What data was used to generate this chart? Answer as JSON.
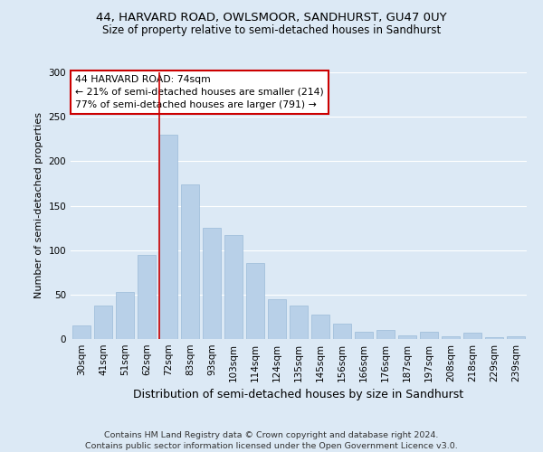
{
  "title_line1": "44, HARVARD ROAD, OWLSMOOR, SANDHURST, GU47 0UY",
  "title_line2": "Size of property relative to semi-detached houses in Sandhurst",
  "xlabel": "Distribution of semi-detached houses by size in Sandhurst",
  "ylabel": "Number of semi-detached properties",
  "footnote": "Contains HM Land Registry data © Crown copyright and database right 2024.\nContains public sector information licensed under the Open Government Licence v3.0.",
  "bar_labels": [
    "30sqm",
    "41sqm",
    "51sqm",
    "62sqm",
    "72sqm",
    "83sqm",
    "93sqm",
    "103sqm",
    "114sqm",
    "124sqm",
    "135sqm",
    "145sqm",
    "156sqm",
    "166sqm",
    "176sqm",
    "187sqm",
    "197sqm",
    "208sqm",
    "218sqm",
    "229sqm",
    "239sqm"
  ],
  "bar_values": [
    15,
    38,
    53,
    95,
    230,
    174,
    125,
    117,
    85,
    45,
    38,
    27,
    17,
    8,
    10,
    4,
    8,
    3,
    7,
    2,
    3
  ],
  "bar_color": "#b8d0e8",
  "bar_edge_color": "#9bbad8",
  "highlight_index": 4,
  "highlight_color": "#cc0000",
  "annotation_title": "44 HARVARD ROAD: 74sqm",
  "annotation_line1": "← 21% of semi-detached houses are smaller (214)",
  "annotation_line2": "77% of semi-detached houses are larger (791) →",
  "annotation_box_facecolor": "#ffffff",
  "annotation_box_edgecolor": "#cc0000",
  "ylim": [
    0,
    300
  ],
  "yticks": [
    0,
    50,
    100,
    150,
    200,
    250,
    300
  ],
  "bg_color": "#dce9f5",
  "grid_color": "#ffffff",
  "title1_fontsize": 9.5,
  "title2_fontsize": 8.5,
  "xlabel_fontsize": 9,
  "ylabel_fontsize": 8,
  "tick_fontsize": 7.5,
  "footnote_fontsize": 6.8,
  "annotation_fontsize": 7.8
}
